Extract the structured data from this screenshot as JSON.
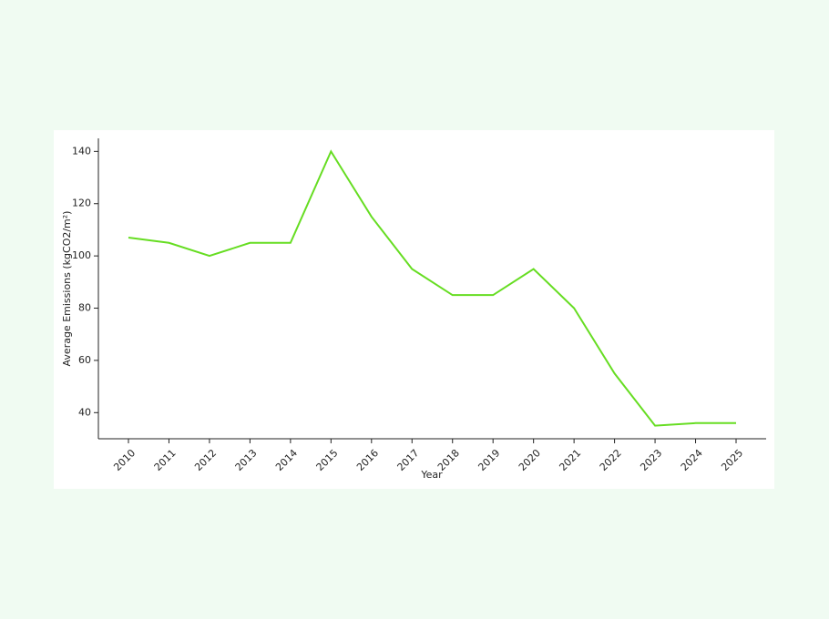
{
  "chart_data": {
    "type": "line",
    "x_label": "Year",
    "y_label": "Average Emissions (kgCO2/m²)",
    "categories": [
      "2010",
      "2011",
      "2012",
      "2013",
      "2014",
      "2015",
      "2016",
      "2017",
      "2018",
      "2019",
      "2020",
      "2021",
      "2022",
      "2023",
      "2024",
      "2025"
    ],
    "values": [
      107,
      105,
      100,
      105,
      105,
      140,
      115,
      95,
      85,
      85,
      95,
      80,
      55,
      35,
      36,
      36
    ],
    "color": "#66dd22",
    "ylim": [
      30,
      145
    ],
    "yticks": [
      40,
      60,
      80,
      100,
      120,
      140
    ],
    "grid": false
  }
}
